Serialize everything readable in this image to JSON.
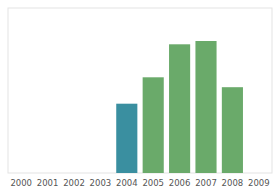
{
  "chart_data": {
    "type": "bar",
    "categories": [
      "2000",
      "2001",
      "2002",
      "2003",
      "2004",
      "2005",
      "2006",
      "2007",
      "2008",
      "2009"
    ],
    "values": [
      0,
      0,
      0,
      0,
      42,
      58,
      78,
      80,
      52,
      0
    ],
    "colors": [
      "#ffffff",
      "#ffffff",
      "#ffffff",
      "#ffffff",
      "#3a8fa0",
      "#6aaa6a",
      "#6aaa6a",
      "#6aaa6a",
      "#6aaa6a",
      "#ffffff"
    ],
    "ylim": [
      0,
      100
    ],
    "grid": false,
    "tick_labels": "x"
  }
}
